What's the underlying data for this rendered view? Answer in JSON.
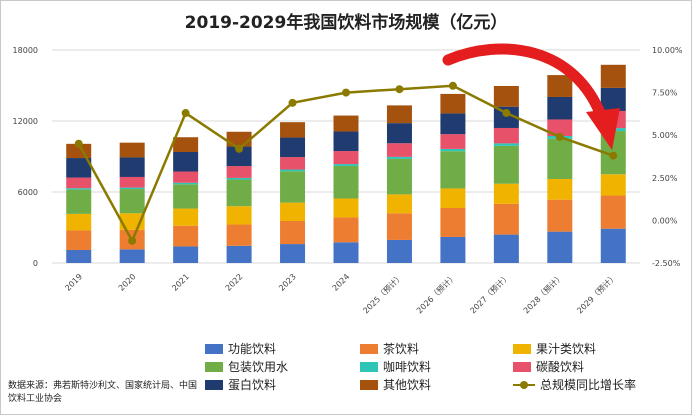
{
  "chart_data": {
    "type": "bar",
    "title": "2019-2029年我国饮料市场规模（亿元）",
    "categories": [
      "2019",
      "2020",
      "2021",
      "2022",
      "2023",
      "2024",
      "2025（预计）",
      "2026（预计）",
      "2027（预计）",
      "2028（预计）",
      "2029（预计）"
    ],
    "ylim": [
      0,
      18000
    ],
    "y_ticks": [
      "0",
      "6000",
      "12000",
      "18000"
    ],
    "y2lim": [
      -0.025,
      0.1
    ],
    "y2_ticks": [
      "-2.50%",
      "0.00%",
      "2.50%",
      "5.00%",
      "7.50%",
      "10.00%"
    ],
    "series": [
      {
        "name": "功能饮料",
        "color": "#4472C4",
        "values": [
          1100,
          1150,
          1400,
          1450,
          1600,
          1750,
          1950,
          2200,
          2400,
          2650,
          2900
        ]
      },
      {
        "name": "茶饮料",
        "color": "#ED7D31",
        "values": [
          1650,
          1650,
          1750,
          1800,
          1950,
          2100,
          2250,
          2450,
          2600,
          2700,
          2800
        ]
      },
      {
        "name": "果汁类饮料",
        "color": "#F0B400",
        "values": [
          1400,
          1400,
          1450,
          1550,
          1550,
          1600,
          1600,
          1650,
          1700,
          1750,
          1800
        ]
      },
      {
        "name": "包装饮用水",
        "color": "#70AD47",
        "values": [
          2050,
          2050,
          2050,
          2250,
          2650,
          2750,
          3000,
          3150,
          3200,
          3400,
          3650
        ]
      },
      {
        "name": "咖啡饮料",
        "color": "#2EC4B6",
        "values": [
          120,
          120,
          130,
          140,
          150,
          160,
          170,
          190,
          210,
          230,
          250
        ]
      },
      {
        "name": "碳酸饮料",
        "color": "#E8516A",
        "values": [
          900,
          900,
          950,
          1000,
          1050,
          1100,
          1150,
          1250,
          1300,
          1400,
          1450
        ]
      },
      {
        "name": "蛋白饮料",
        "color": "#1F3B70",
        "values": [
          1650,
          1650,
          1650,
          1650,
          1650,
          1650,
          1700,
          1750,
          1800,
          1900,
          1950
        ]
      },
      {
        "name": "其他饮料",
        "color": "#A5520E",
        "values": [
          1200,
          1250,
          1250,
          1250,
          1300,
          1350,
          1500,
          1650,
          1750,
          1850,
          1950
        ]
      }
    ],
    "line_series": {
      "name": "总规模同比增长率",
      "color": "#8A7A00",
      "values": [
        0.045,
        -0.012,
        0.063,
        0.042,
        0.069,
        0.075,
        0.077,
        0.079,
        0.063,
        0.049,
        0.038
      ]
    }
  },
  "source": "数据来源：弗若斯特沙利文、国家统计局、中国饮料工业协会"
}
